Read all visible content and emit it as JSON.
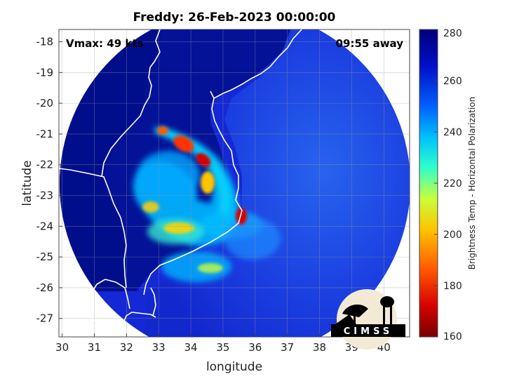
{
  "title": "Freddy: 26-Feb-2023 00:00:00",
  "vmax_text": "Vmax: 49 kts",
  "time_away_text": "09:55 away",
  "xlabel": "longitude",
  "ylabel": "latitude",
  "colorbar_label": "Brightness Temp - Horizontal Polarization",
  "logo_text": "CIMSS",
  "map": {
    "xlim": [
      29.9,
      40.8
    ],
    "ylim": [
      -27.6,
      -17.6
    ],
    "x_ticks": [
      "30",
      "31",
      "32",
      "33",
      "34",
      "35",
      "36",
      "37",
      "38",
      "39",
      "40"
    ],
    "y_ticks": [
      "-18",
      "-19",
      "-20",
      "-21",
      "-22",
      "-23",
      "-24",
      "-25",
      "-26",
      "-27"
    ],
    "grid": true,
    "swath_color": "#1428d6",
    "background_color": "#000e8c",
    "coast_color": "#ffffff"
  },
  "colorbar": {
    "range": [
      160,
      280
    ],
    "ticks": [
      "280",
      "260",
      "240",
      "220",
      "200",
      "180",
      "160"
    ],
    "colors": [
      "#7a0000",
      "#d40000",
      "#ff5a00",
      "#ffc400",
      "#c8ff3c",
      "#2fffc9",
      "#00c0ff",
      "#0060ff",
      "#0010c8",
      "#00007a"
    ]
  }
}
